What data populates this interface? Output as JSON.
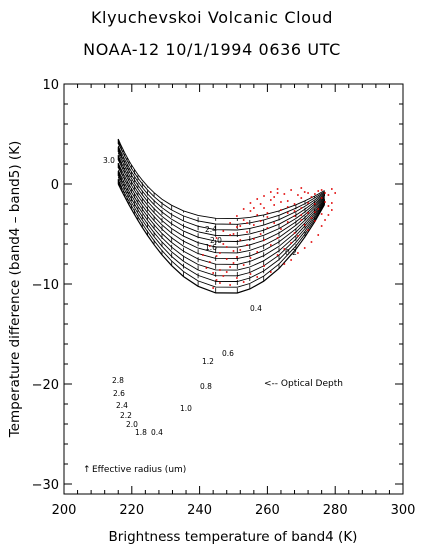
{
  "chart_data": {
    "type": "line",
    "title": "Klyuchevskoi Volcanic Cloud",
    "subtitle": "NOAA-12  10/1/1994  0636 UTC",
    "xlabel": "Brightness temperature of band4 (K)",
    "ylabel": "Temperature difference (band4 – band5) (K)",
    "xlim": [
      200,
      300
    ],
    "ylim": [
      -31,
      10
    ],
    "x_ticks": [
      "200",
      "220",
      "240",
      "260",
      "280",
      "300"
    ],
    "y_ticks": [
      "10",
      "0",
      "−10",
      "−20",
      "−30"
    ],
    "grid": false,
    "legend": "none",
    "effective_radius_labels": [
      "3.0",
      "2.8",
      "2.6",
      "2.4",
      "2.2",
      "2.0",
      "1.8",
      "0.4"
    ],
    "optical_depth_labels": [
      "0.2",
      "0.4",
      "0.6",
      "0.8",
      "1.0",
      "1.2",
      "1.6",
      "2.0",
      "2.4"
    ],
    "effective_radius_annotation": "Effective radius (um)",
    "optical_depth_annotation": "<-- Optical Depth",
    "model": {
      "surface_temperature": 280,
      "cloud_temperature": 216,
      "effective_radii_um": [
        0.4,
        0.6,
        0.8,
        1.0,
        1.2,
        1.4,
        1.6,
        1.8,
        2.0,
        2.2,
        2.4,
        2.6,
        2.8,
        3.0
      ],
      "optical_depths": [
        0.05,
        0.1,
        0.15,
        0.2,
        0.3,
        0.4,
        0.5,
        0.6,
        0.8,
        1.0,
        1.2,
        1.4,
        1.6,
        1.8,
        2.0,
        2.2,
        2.4,
        2.6,
        2.8,
        3.0,
        3.2,
        3.5,
        3.8,
        4.2,
        4.6,
        5.0,
        5.5,
        6,
        7,
        8,
        10
      ]
    },
    "observations": {
      "color": "#e00000",
      "points": [
        [
          262,
          -2.1
        ],
        [
          264,
          -2.6
        ],
        [
          266,
          -1.7
        ],
        [
          268,
          -3.2
        ],
        [
          270,
          -2.4
        ],
        [
          272,
          -1.9
        ],
        [
          274,
          -2.8
        ],
        [
          276,
          -1.4
        ],
        [
          278,
          -2.2
        ],
        [
          271,
          -0.8
        ],
        [
          273,
          -1.3
        ],
        [
          275,
          -0.7
        ],
        [
          277,
          -0.9
        ],
        [
          269,
          -1.1
        ],
        [
          267,
          -0.6
        ],
        [
          265,
          -1.0
        ],
        [
          263,
          -0.9
        ],
        [
          261,
          -1.6
        ],
        [
          259,
          -2.4
        ],
        [
          257,
          -3.1
        ],
        [
          255,
          -2.7
        ],
        [
          253,
          -3.6
        ],
        [
          251,
          -4.3
        ],
        [
          249,
          -5.1
        ],
        [
          247,
          -6.0
        ],
        [
          245,
          -7.2
        ],
        [
          243,
          -7.8
        ],
        [
          246,
          -8.6
        ],
        [
          248,
          -7.5
        ],
        [
          250,
          -6.7
        ],
        [
          252,
          -5.6
        ],
        [
          254,
          -4.8
        ],
        [
          256,
          -4.1
        ],
        [
          258,
          -3.7
        ],
        [
          260,
          -3.3
        ],
        [
          262,
          -3.9
        ],
        [
          264,
          -4.5
        ],
        [
          266,
          -3.8
        ],
        [
          268,
          -4.9
        ],
        [
          270,
          -3.6
        ],
        [
          272,
          -2.9
        ],
        [
          274,
          -2.0
        ],
        [
          276,
          -3.0
        ],
        [
          278,
          -1.1
        ],
        [
          279,
          -0.5
        ],
        [
          277,
          -1.8
        ],
        [
          275,
          -2.5
        ],
        [
          273,
          -3.4
        ],
        [
          271,
          -4.1
        ],
        [
          269,
          -5.2
        ],
        [
          267,
          -5.9
        ],
        [
          265,
          -6.5
        ],
        [
          263,
          -5.4
        ],
        [
          261,
          -6.1
        ],
        [
          259,
          -5.6
        ],
        [
          257,
          -6.8
        ],
        [
          255,
          -7.4
        ],
        [
          253,
          -8.1
        ],
        [
          251,
          -7.3
        ],
        [
          249,
          -8.3
        ],
        [
          247,
          -9.2
        ],
        [
          245,
          -9.6
        ],
        [
          244,
          -8.9
        ],
        [
          242,
          -8.4
        ],
        [
          241,
          -7.1
        ],
        [
          243,
          -6.2
        ],
        [
          245,
          -5.4
        ],
        [
          247,
          -4.7
        ],
        [
          249,
          -3.9
        ],
        [
          251,
          -3.2
        ],
        [
          253,
          -2.5
        ],
        [
          255,
          -1.9
        ],
        [
          257,
          -1.5
        ],
        [
          259,
          -1.2
        ],
        [
          261,
          -0.8
        ],
        [
          263,
          -0.5
        ],
        [
          266,
          -2.9
        ],
        [
          268,
          -2.0
        ],
        [
          270,
          -1.4
        ],
        [
          272,
          -4.6
        ],
        [
          274,
          -3.7
        ],
        [
          276,
          -4.2
        ],
        [
          278,
          -3.1
        ],
        [
          279,
          -1.9
        ],
        [
          280,
          -0.9
        ],
        [
          275,
          -5.1
        ],
        [
          273,
          -5.8
        ],
        [
          271,
          -6.4
        ],
        [
          269,
          -6.9
        ],
        [
          267,
          -7.6
        ],
        [
          265,
          -8.0
        ],
        [
          263,
          -7.1
        ],
        [
          261,
          -8.8
        ],
        [
          259,
          -8.2
        ],
        [
          257,
          -9.3
        ],
        [
          255,
          -9.0
        ],
        [
          253,
          -9.8
        ],
        [
          251,
          -9.4
        ],
        [
          249,
          -10.1
        ],
        [
          262,
          -1.3
        ],
        [
          264,
          -1.8
        ],
        [
          266,
          -2.3
        ],
        [
          268,
          -2.7
        ],
        [
          270,
          -3.1
        ],
        [
          260,
          -4.4
        ],
        [
          258,
          -5.0
        ],
        [
          256,
          -5.5
        ],
        [
          254,
          -6.1
        ],
        [
          252,
          -6.6
        ],
        [
          250,
          -7.9
        ],
        [
          248,
          -8.8
        ],
        [
          246,
          -9.9
        ],
        [
          244,
          -10.4
        ],
        [
          277,
          -3.6
        ],
        [
          279,
          -2.6
        ],
        [
          276,
          -0.6
        ],
        [
          274,
          -1.0
        ],
        [
          272,
          -0.9
        ],
        [
          270,
          -0.4
        ],
        [
          260,
          -2.9
        ],
        [
          258,
          -2.0
        ],
        [
          256,
          -2.4
        ],
        [
          254,
          -3.9
        ],
        [
          252,
          -4.2
        ],
        [
          250,
          -5.0
        ],
        [
          248,
          -6.3
        ],
        [
          246,
          -6.9
        ]
      ]
    }
  }
}
